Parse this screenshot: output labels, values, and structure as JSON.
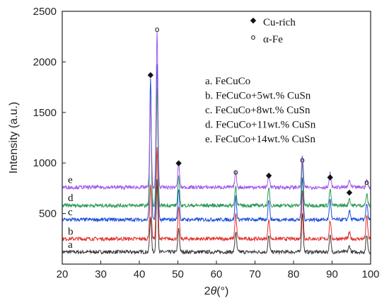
{
  "chart_data": {
    "type": "line",
    "xlabel_parts": {
      "main": "2",
      "italic": "θ",
      "unit": "(°)"
    },
    "ylabel": "Intensity (a.u.)",
    "xlim": [
      20,
      100
    ],
    "ylim": [
      0,
      2500
    ],
    "x_ticks": [
      20,
      30,
      40,
      50,
      60,
      70,
      80,
      90,
      100
    ],
    "y_ticks": [
      500,
      1000,
      1500,
      2000,
      2500
    ],
    "grid": false,
    "series": [
      {
        "label": "a",
        "baseline": 120,
        "color": "#3a3a3a",
        "peaks": [
          [
            42.9,
            350
          ],
          [
            44.6,
            700
          ],
          [
            50.2,
            230
          ],
          [
            65.0,
            200
          ],
          [
            73.6,
            160
          ],
          [
            82.3,
            390
          ],
          [
            89.5,
            160
          ],
          [
            94.5,
            60
          ],
          [
            99.0,
            170
          ]
        ]
      },
      {
        "label": "b",
        "baseline": 250,
        "color": "#e0332e",
        "peaks": [
          [
            42.9,
            550
          ],
          [
            44.6,
            900
          ],
          [
            50.2,
            300
          ],
          [
            65.0,
            250
          ],
          [
            73.6,
            200
          ],
          [
            82.3,
            470
          ],
          [
            89.5,
            180
          ],
          [
            94.5,
            60
          ],
          [
            99.0,
            230
          ]
        ]
      },
      {
        "label": "c",
        "baseline": 440,
        "color": "#1f4fd8",
        "peaks": [
          [
            42.9,
            1400
          ],
          [
            44.6,
            1540
          ],
          [
            50.2,
            310
          ],
          [
            65.0,
            230
          ],
          [
            73.6,
            200
          ],
          [
            82.3,
            420
          ],
          [
            89.5,
            200
          ],
          [
            94.5,
            90
          ],
          [
            99.0,
            160
          ]
        ]
      },
      {
        "label": "d",
        "baseline": 580,
        "color": "#2a9a56",
        "peaks": [
          [
            42.9,
            1010
          ],
          [
            44.6,
            1140
          ],
          [
            50.2,
            280
          ],
          [
            65.0,
            190
          ],
          [
            73.6,
            170
          ],
          [
            82.3,
            420
          ],
          [
            89.5,
            160
          ],
          [
            94.5,
            70
          ],
          [
            99.0,
            110
          ]
        ]
      },
      {
        "label": "e",
        "baseline": 760,
        "color": "#a05ae8",
        "peaks": [
          [
            42.9,
            860
          ],
          [
            44.6,
            1540
          ],
          [
            50.2,
            240
          ],
          [
            65.0,
            150
          ],
          [
            73.6,
            130
          ],
          [
            82.3,
            320
          ],
          [
            89.5,
            140
          ],
          [
            94.5,
            70
          ],
          [
            99.0,
            70
          ]
        ]
      }
    ],
    "phase_markers": [
      {
        "symbol": "◆",
        "phase": "Cu-rich",
        "x": 42.9,
        "y": 1875
      },
      {
        "symbol": "o",
        "phase": "α-Fe",
        "x": 44.6,
        "y": 2320
      },
      {
        "symbol": "◆",
        "phase": "Cu-rich",
        "x": 50.2,
        "y": 1000
      },
      {
        "symbol": "o",
        "phase": "α-Fe",
        "x": 65.0,
        "y": 910
      },
      {
        "symbol": "◆",
        "phase": "Cu-rich",
        "x": 73.6,
        "y": 880
      },
      {
        "symbol": "o",
        "phase": "α-Fe",
        "x": 82.3,
        "y": 1030
      },
      {
        "symbol": "◆",
        "phase": "Cu-rich",
        "x": 89.5,
        "y": 860
      },
      {
        "symbol": "◆",
        "phase": "Cu-rich",
        "x": 94.5,
        "y": 710
      },
      {
        "symbol": "o",
        "phase": "α-Fe",
        "x": 99.0,
        "y": 810
      }
    ],
    "phase_legend": [
      {
        "symbol": "◆",
        "label": "Cu-rich"
      },
      {
        "symbol": "o",
        "label": "α-Fe"
      }
    ],
    "sample_legend": [
      "a.  FeCuCo",
      "b.  FeCuCo+5wt.% CuSn",
      "c.  FeCuCo+8wt.% CuSn",
      "d.  FeCuCo+11wt.% CuSn",
      "e.  FeCuCo+14wt.% CuSn"
    ]
  }
}
